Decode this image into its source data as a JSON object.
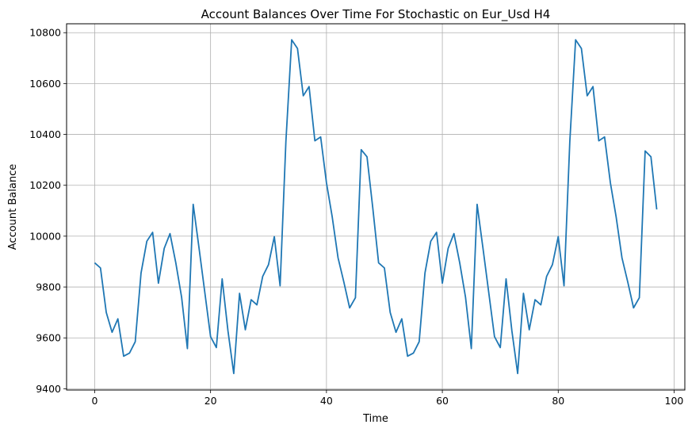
{
  "chart_data": {
    "type": "line",
    "title": "Account Balances Over Time For Stochastic on Eur_Usd H4",
    "xlabel": "Time",
    "ylabel": "Account Balance",
    "xlim": [
      -4.85,
      101.85
    ],
    "ylim": [
      9395,
      10835
    ],
    "x_ticks": [
      0,
      20,
      40,
      60,
      80,
      100
    ],
    "y_ticks": [
      9400,
      9600,
      9800,
      10000,
      10200,
      10400,
      10600,
      10800
    ],
    "grid": true,
    "colors": {
      "line": "#1f77b4",
      "grid": "#b0b0b0"
    },
    "series": [
      {
        "x": [
          0,
          1,
          2,
          3,
          4,
          5,
          6,
          7,
          8,
          9,
          10,
          11,
          12,
          13,
          14,
          15,
          16,
          17,
          18,
          19,
          20,
          21,
          22,
          23,
          24,
          25,
          26,
          27,
          28,
          29,
          30,
          31,
          32,
          33,
          34,
          35,
          36,
          37,
          38,
          39,
          40,
          41,
          42,
          43,
          44,
          45,
          46,
          47,
          48,
          49,
          50,
          51,
          52,
          53,
          54,
          55,
          56,
          57,
          58,
          59,
          60,
          61,
          62,
          63,
          64,
          65,
          66,
          67,
          68,
          69,
          70,
          71,
          72,
          73,
          74,
          75,
          76,
          77,
          78,
          79,
          80,
          81,
          82,
          83,
          84,
          85,
          86,
          87,
          88,
          89,
          90,
          91,
          92,
          93,
          94,
          95,
          96,
          97
        ],
        "values": [
          9895,
          9875,
          9700,
          9622,
          9675,
          9528,
          9540,
          9585,
          9855,
          9980,
          10015,
          9815,
          9952,
          10010,
          9895,
          9760,
          9558,
          10125,
          9955,
          9780,
          9605,
          9562,
          9832,
          9628,
          9460,
          9775,
          9632,
          9750,
          9730,
          9842,
          9888,
          9998,
          9805,
          10372,
          10772,
          10738,
          10552,
          10588,
          10375,
          10390,
          10210,
          10075,
          9915,
          9820,
          9718,
          9758,
          10340,
          10312,
          10110,
          9895,
          9875,
          9700,
          9622,
          9675,
          9528,
          9540,
          9585,
          9855,
          9980,
          10015,
          9815,
          9952,
          10010,
          9895,
          9760,
          9558,
          10125,
          9955,
          9780,
          9605,
          9562,
          9832,
          9628,
          9460,
          9775,
          9632,
          9750,
          9730,
          9842,
          9888,
          9998,
          9805,
          10372,
          10772,
          10738,
          10552,
          10588,
          10375,
          10390,
          10210,
          10075,
          9915,
          9820,
          9718,
          9758,
          10335,
          10312,
          10105
        ]
      }
    ]
  }
}
